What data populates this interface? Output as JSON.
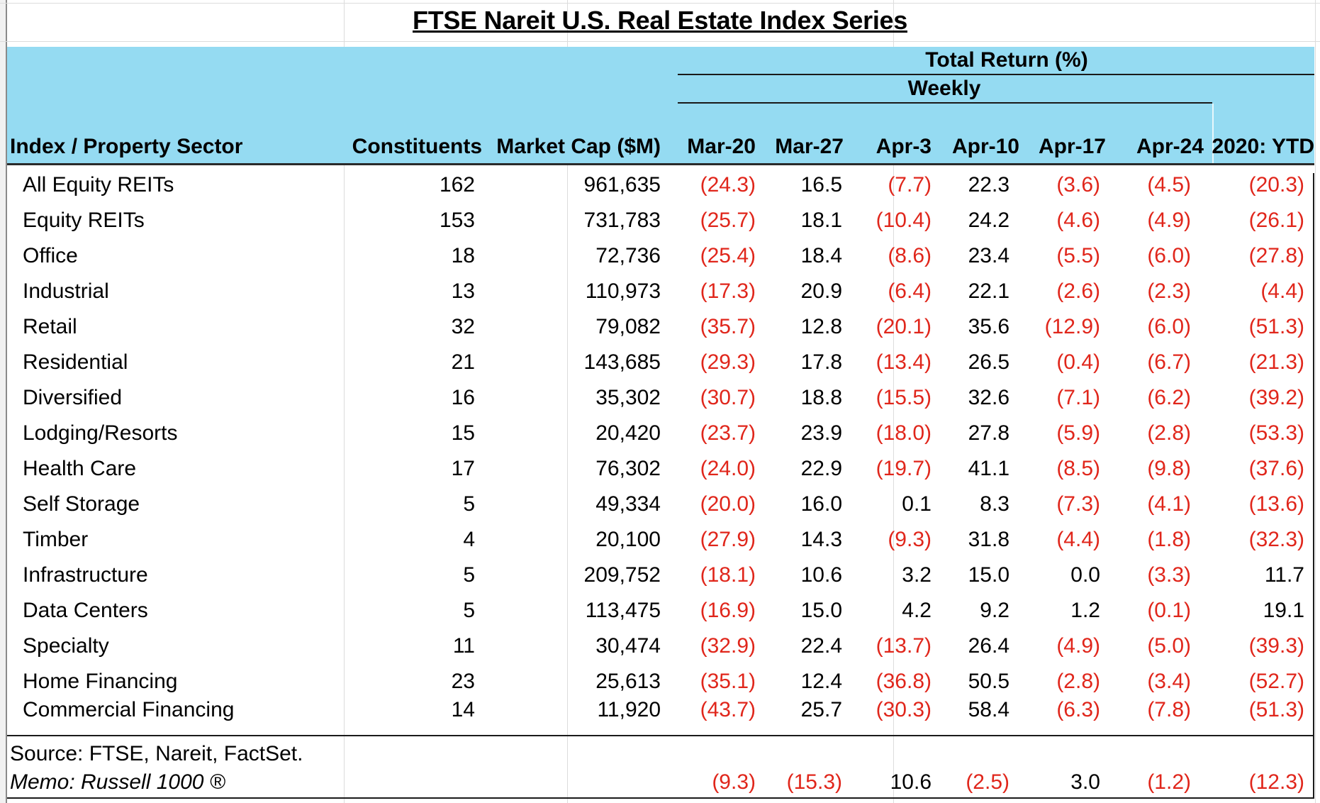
{
  "title": "FTSE Nareit U.S. Real Estate Index Series",
  "header": {
    "group_label": "Total Return (%)",
    "subgroup_label": "Weekly",
    "columns": [
      "Index / Property Sector",
      "Constituents",
      "Market Cap ($M)",
      "Mar-20",
      "Mar-27",
      "Apr-3",
      "Apr-10",
      "Apr-17",
      "Apr-24",
      "2020: YTD"
    ]
  },
  "rows": [
    {
      "name": "All Equity REITs",
      "constituents": "162",
      "market_cap": "961,635",
      "returns": [
        "(24.3)",
        "16.5",
        "(7.7)",
        "22.3",
        "(3.6)",
        "(4.5)",
        "(20.3)"
      ]
    },
    {
      "name": "Equity REITs",
      "constituents": "153",
      "market_cap": "731,783",
      "returns": [
        "(25.7)",
        "18.1",
        "(10.4)",
        "24.2",
        "(4.6)",
        "(4.9)",
        "(26.1)"
      ]
    },
    {
      "name": "Office",
      "constituents": "18",
      "market_cap": "72,736",
      "returns": [
        "(25.4)",
        "18.4",
        "(8.6)",
        "23.4",
        "(5.5)",
        "(6.0)",
        "(27.8)"
      ]
    },
    {
      "name": "Industrial",
      "constituents": "13",
      "market_cap": "110,973",
      "returns": [
        "(17.3)",
        "20.9",
        "(6.4)",
        "22.1",
        "(2.6)",
        "(2.3)",
        "(4.4)"
      ]
    },
    {
      "name": "Retail",
      "constituents": "32",
      "market_cap": "79,082",
      "returns": [
        "(35.7)",
        "12.8",
        "(20.1)",
        "35.6",
        "(12.9)",
        "(6.0)",
        "(51.3)"
      ]
    },
    {
      "name": "Residential",
      "constituents": "21",
      "market_cap": "143,685",
      "returns": [
        "(29.3)",
        "17.8",
        "(13.4)",
        "26.5",
        "(0.4)",
        "(6.7)",
        "(21.3)"
      ]
    },
    {
      "name": "Diversified",
      "constituents": "16",
      "market_cap": "35,302",
      "returns": [
        "(30.7)",
        "18.8",
        "(15.5)",
        "32.6",
        "(7.1)",
        "(6.2)",
        "(39.2)"
      ]
    },
    {
      "name": "Lodging/Resorts",
      "constituents": "15",
      "market_cap": "20,420",
      "returns": [
        "(23.7)",
        "23.9",
        "(18.0)",
        "27.8",
        "(5.9)",
        "(2.8)",
        "(53.3)"
      ]
    },
    {
      "name": "Health Care",
      "constituents": "17",
      "market_cap": "76,302",
      "returns": [
        "(24.0)",
        "22.9",
        "(19.7)",
        "41.1",
        "(8.5)",
        "(9.8)",
        "(37.6)"
      ]
    },
    {
      "name": "Self Storage",
      "constituents": "5",
      "market_cap": "49,334",
      "returns": [
        "(20.0)",
        "16.0",
        "0.1",
        "8.3",
        "(7.3)",
        "(4.1)",
        "(13.6)"
      ]
    },
    {
      "name": "Timber",
      "constituents": "4",
      "market_cap": "20,100",
      "returns": [
        "(27.9)",
        "14.3",
        "(9.3)",
        "31.8",
        "(4.4)",
        "(1.8)",
        "(32.3)"
      ]
    },
    {
      "name": "Infrastructure",
      "constituents": "5",
      "market_cap": "209,752",
      "returns": [
        "(18.1)",
        "10.6",
        "3.2",
        "15.0",
        "0.0",
        "(3.3)",
        "11.7"
      ]
    },
    {
      "name": "Data Centers",
      "constituents": "5",
      "market_cap": "113,475",
      "returns": [
        "(16.9)",
        "15.0",
        "4.2",
        "9.2",
        "1.2",
        "(0.1)",
        "19.1"
      ]
    },
    {
      "name": "Specialty",
      "constituents": "11",
      "market_cap": "30,474",
      "returns": [
        "(32.9)",
        "22.4",
        "(13.7)",
        "26.4",
        "(4.9)",
        "(5.0)",
        "(39.3)"
      ]
    },
    {
      "name": "Home Financing",
      "constituents": "23",
      "market_cap": "25,613",
      "returns": [
        "(35.1)",
        "12.4",
        "(36.8)",
        "50.5",
        "(2.8)",
        "(3.4)",
        "(52.7)"
      ]
    },
    {
      "name": "Commercial Financing",
      "constituents": "14",
      "market_cap": "11,920",
      "returns": [
        "(43.7)",
        "25.7",
        "(30.3)",
        "58.4",
        "(6.3)",
        "(7.8)",
        "(51.3)"
      ]
    }
  ],
  "footer": {
    "source": "Source: FTSE, Nareit, FactSet.",
    "memo_label": "Memo: Russell 1000 ®",
    "memo_returns": [
      "(9.3)",
      "(15.3)",
      "10.6",
      "(2.5)",
      "3.0",
      "(1.2)",
      "(12.3)"
    ]
  },
  "colors": {
    "header_bg": "#95dbf2",
    "negative": "#e0261b"
  }
}
